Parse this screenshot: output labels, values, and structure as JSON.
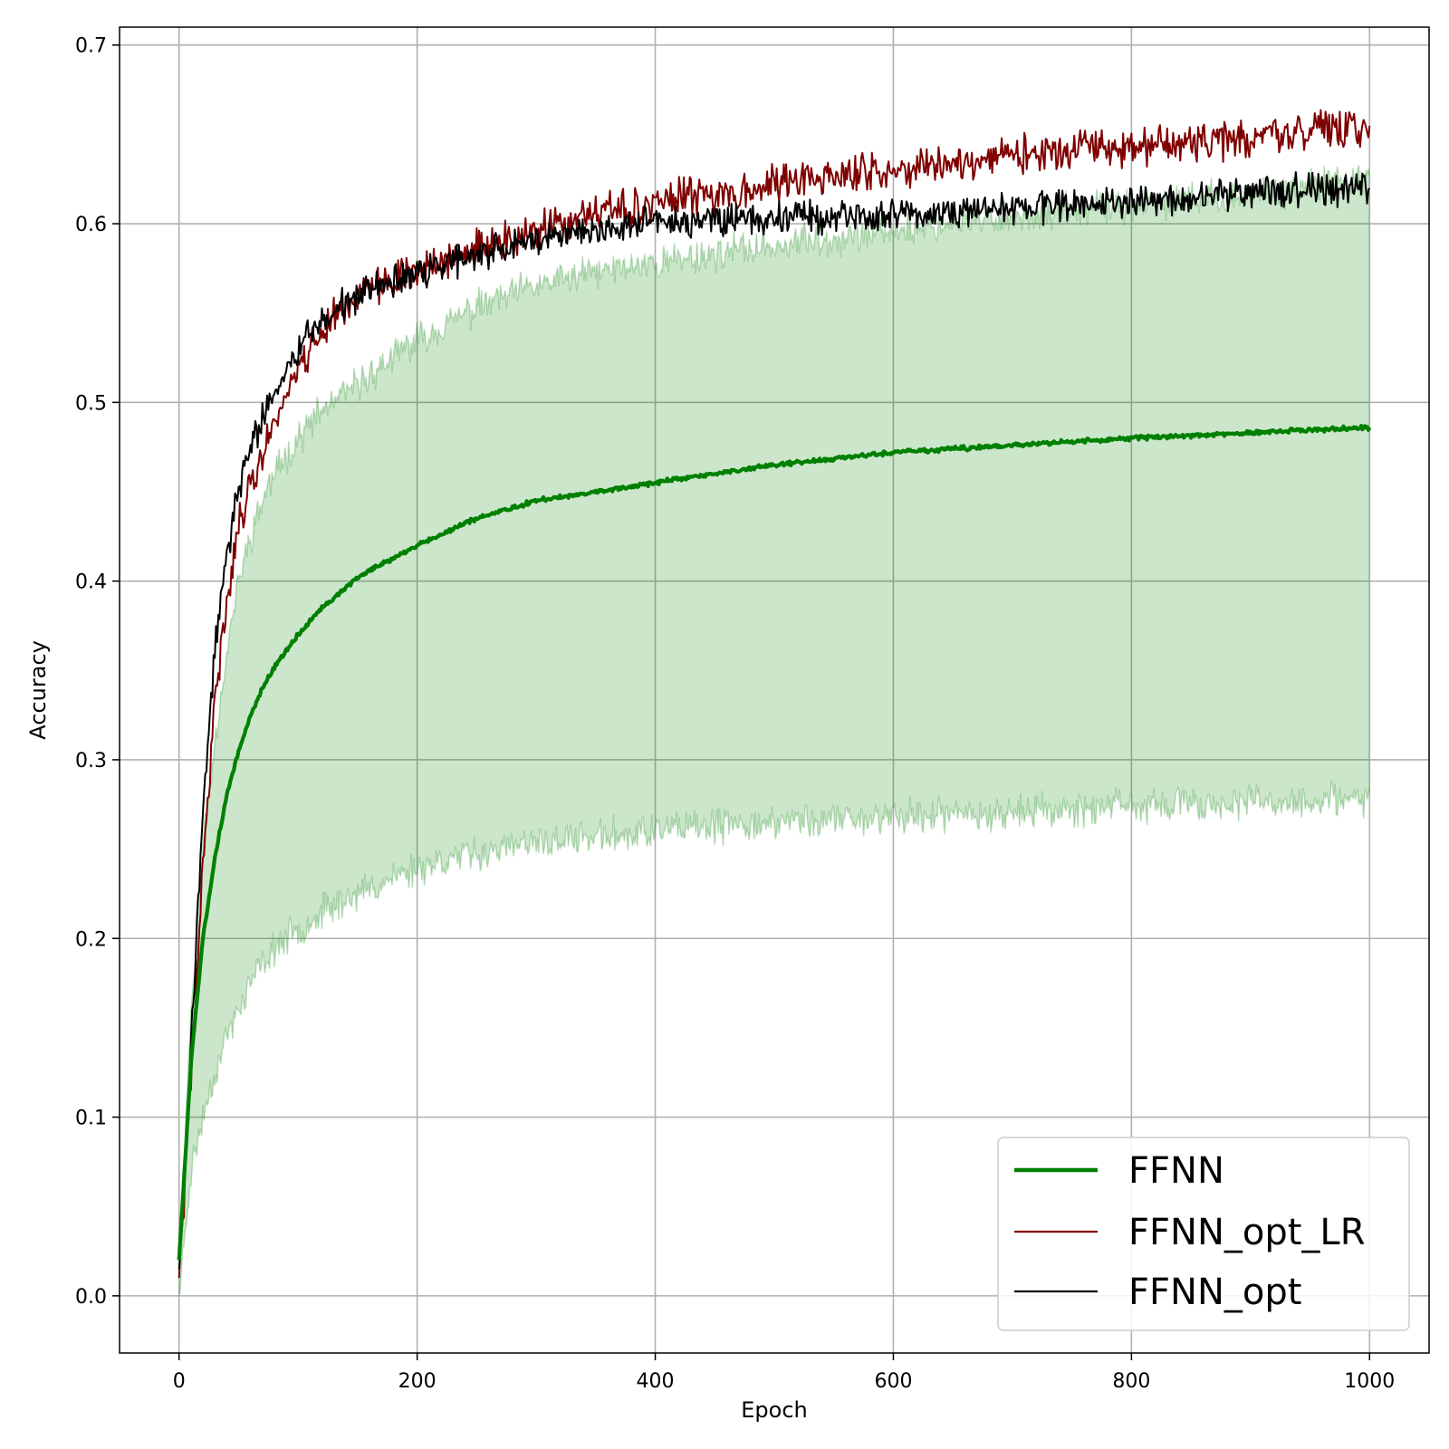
{
  "chart_data": {
    "type": "line",
    "title": "",
    "xlabel": "Epoch",
    "ylabel": "Accuracy",
    "xlim": [
      -50,
      1050
    ],
    "ylim": [
      -0.032,
      0.71
    ],
    "xticks": [
      0,
      200,
      400,
      600,
      800,
      1000
    ],
    "yticks": [
      0.0,
      0.1,
      0.2,
      0.3,
      0.4,
      0.5,
      0.6,
      0.7
    ],
    "grid": true,
    "legend_position": "lower-right",
    "colors": {
      "FFNN": "#008000",
      "FFNN_opt_LR": "#800000",
      "FFNN_opt": "#000000",
      "band": "#008000"
    },
    "series": [
      {
        "name": "FFNN",
        "role": "mean",
        "x": [
          0,
          10,
          20,
          30,
          40,
          50,
          60,
          70,
          80,
          100,
          120,
          150,
          200,
          250,
          300,
          350,
          400,
          500,
          600,
          700,
          800,
          900,
          1000
        ],
        "values": [
          0.02,
          0.13,
          0.2,
          0.245,
          0.28,
          0.305,
          0.325,
          0.34,
          0.352,
          0.37,
          0.385,
          0.402,
          0.42,
          0.435,
          0.445,
          0.45,
          0.455,
          0.465,
          0.472,
          0.476,
          0.48,
          0.483,
          0.486
        ]
      },
      {
        "name": "FFNN_opt_LR",
        "x": [
          0,
          10,
          20,
          30,
          40,
          50,
          60,
          70,
          80,
          100,
          120,
          150,
          200,
          250,
          300,
          350,
          400,
          500,
          600,
          700,
          800,
          900,
          1000
        ],
        "values": [
          0.01,
          0.12,
          0.24,
          0.33,
          0.39,
          0.43,
          0.455,
          0.47,
          0.49,
          0.52,
          0.54,
          0.56,
          0.575,
          0.585,
          0.595,
          0.605,
          0.612,
          0.622,
          0.63,
          0.638,
          0.643,
          0.648,
          0.655
        ]
      },
      {
        "name": "FFNN_opt",
        "x": [
          0,
          10,
          20,
          30,
          40,
          50,
          60,
          70,
          80,
          100,
          120,
          150,
          200,
          250,
          300,
          350,
          400,
          500,
          600,
          700,
          800,
          900,
          1000
        ],
        "values": [
          0.015,
          0.14,
          0.27,
          0.36,
          0.415,
          0.45,
          0.475,
          0.49,
          0.505,
          0.53,
          0.545,
          0.56,
          0.572,
          0.582,
          0.59,
          0.597,
          0.6,
          0.603,
          0.606,
          0.608,
          0.612,
          0.618,
          0.62
        ]
      }
    ],
    "band": {
      "x": [
        0,
        10,
        20,
        30,
        40,
        50,
        60,
        70,
        80,
        100,
        120,
        150,
        200,
        250,
        300,
        350,
        400,
        500,
        600,
        700,
        800,
        900,
        1000
      ],
      "upper": [
        0.02,
        0.16,
        0.25,
        0.31,
        0.36,
        0.4,
        0.425,
        0.445,
        0.46,
        0.48,
        0.495,
        0.51,
        0.535,
        0.553,
        0.565,
        0.573,
        0.578,
        0.588,
        0.596,
        0.604,
        0.61,
        0.617,
        0.625
      ],
      "lower": [
        0.0,
        0.07,
        0.1,
        0.125,
        0.145,
        0.16,
        0.175,
        0.185,
        0.195,
        0.205,
        0.215,
        0.225,
        0.24,
        0.248,
        0.253,
        0.257,
        0.26,
        0.265,
        0.268,
        0.271,
        0.274,
        0.276,
        0.278
      ]
    }
  }
}
